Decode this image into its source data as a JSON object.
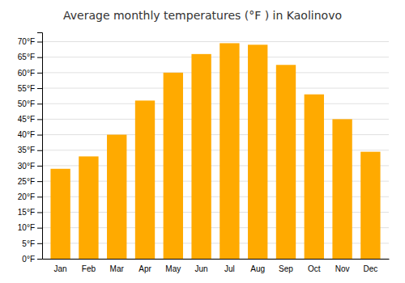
{
  "chart_data": {
    "type": "bar",
    "title": "Average monthly temperatures (°F ) in Kaolinovo",
    "categories": [
      "Jan",
      "Feb",
      "Mar",
      "Apr",
      "May",
      "Jun",
      "Jul",
      "Aug",
      "Sep",
      "Oct",
      "Nov",
      "Dec"
    ],
    "values": [
      29,
      33,
      40,
      51,
      60,
      66,
      69.5,
      69,
      62.5,
      53,
      45,
      34.5
    ],
    "color": "#FFAA00",
    "ylim": [
      0,
      73
    ],
    "yticks": [
      {
        "value": 0,
        "label": "0°F"
      },
      {
        "value": 5,
        "label": "5°F"
      },
      {
        "value": 10,
        "label": "10°F"
      },
      {
        "value": 15,
        "label": "15°F"
      },
      {
        "value": 20,
        "label": "20°F"
      },
      {
        "value": 25,
        "label": "25°F"
      },
      {
        "value": 30,
        "label": "30°F"
      },
      {
        "value": 35,
        "label": "35°F"
      },
      {
        "value": 40,
        "label": "40°F"
      },
      {
        "value": 45,
        "label": "45°F"
      },
      {
        "value": 50,
        "label": "50°F"
      },
      {
        "value": 55,
        "label": "55°F"
      },
      {
        "value": 60,
        "label": "60°F"
      },
      {
        "value": 65,
        "label": "65°F"
      },
      {
        "value": 70,
        "label": "70°F"
      }
    ],
    "grid": true
  }
}
